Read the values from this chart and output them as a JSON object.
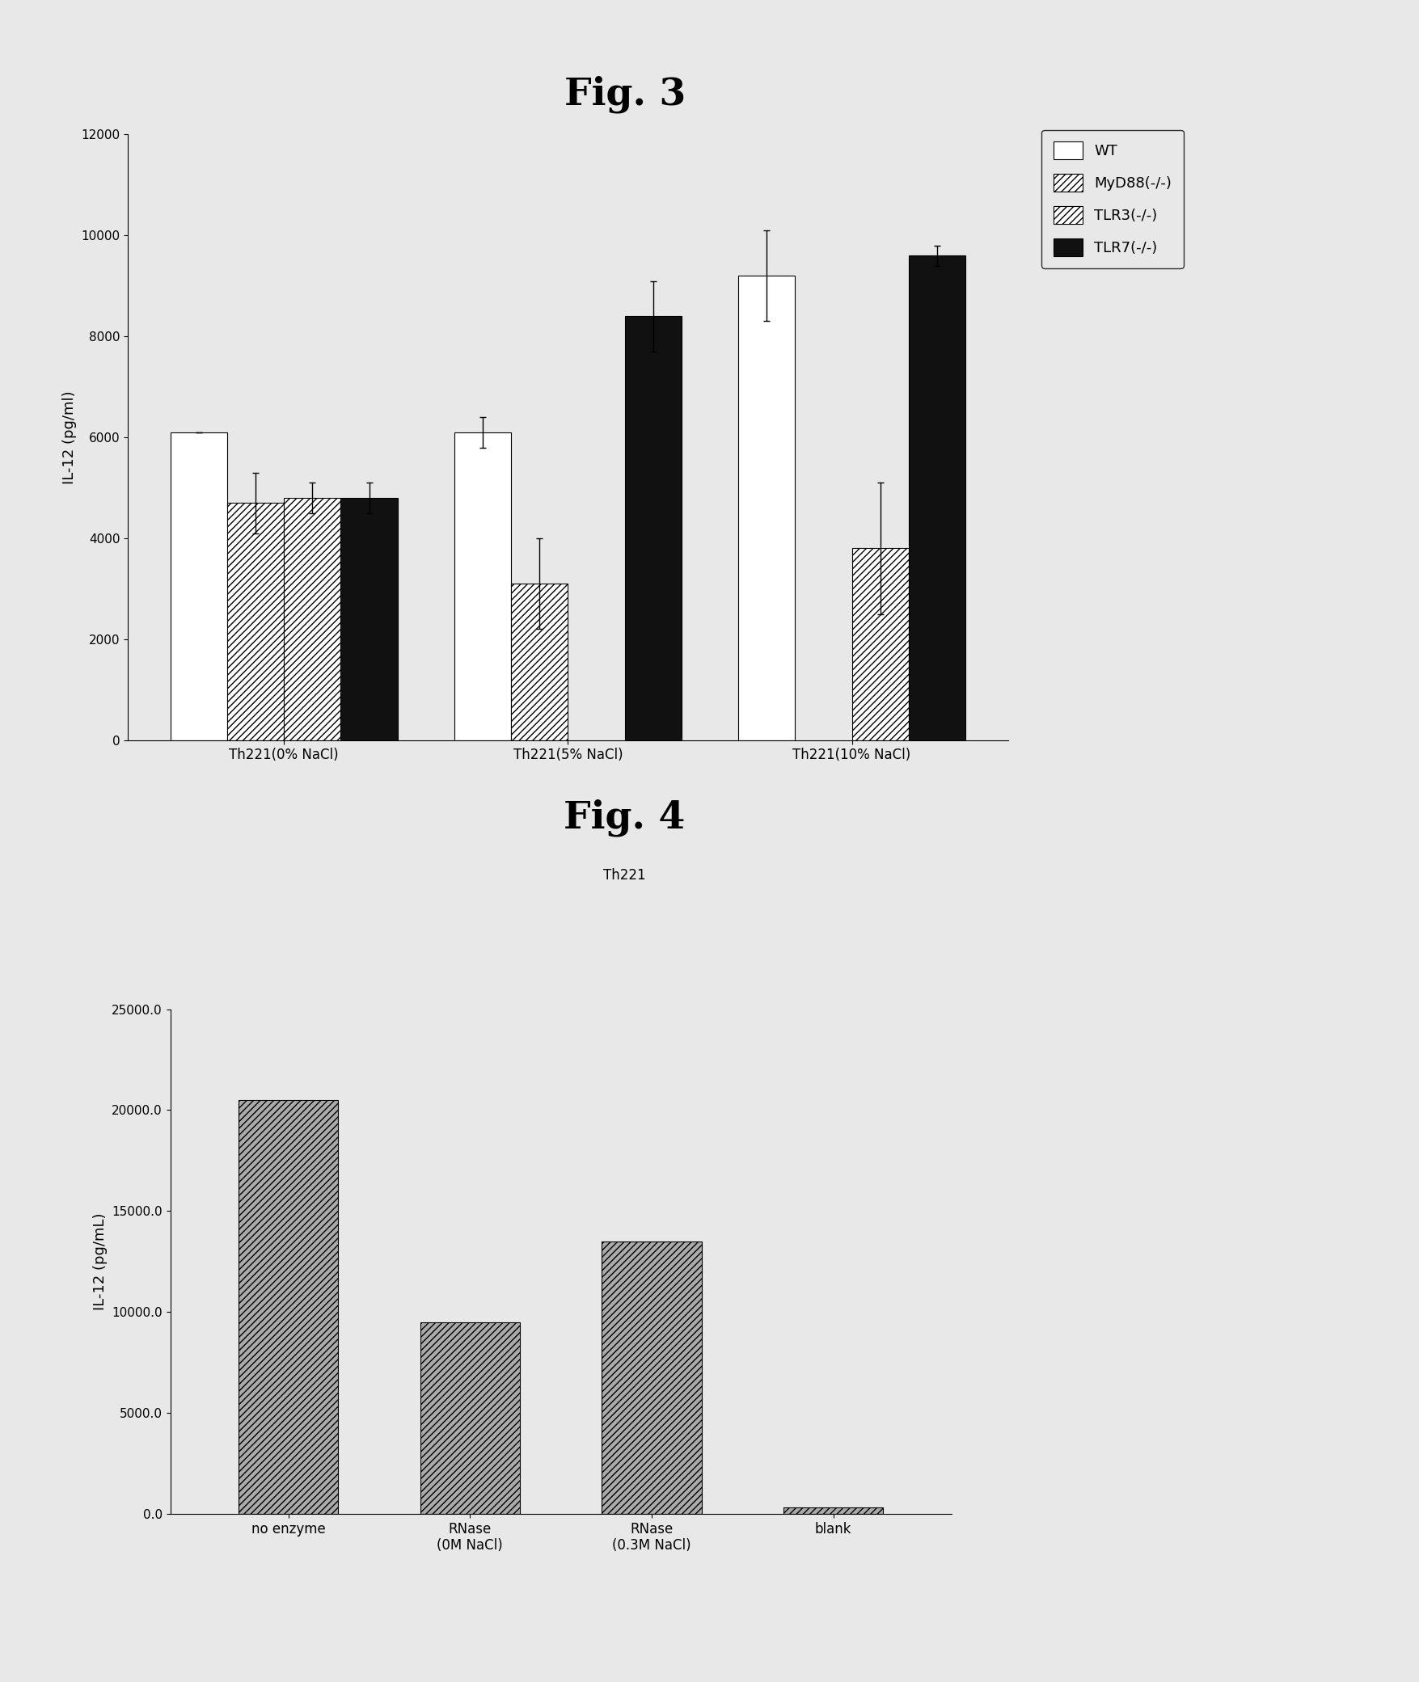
{
  "fig3_title": "Fig. 3",
  "fig3_ylabel": "IL-12 (pg/ml)",
  "fig3_ylim": [
    0,
    12000
  ],
  "fig3_yticks": [
    0,
    2000,
    4000,
    6000,
    8000,
    10000,
    12000
  ],
  "fig3_groups": [
    "Th221(0% NaCl)",
    "Th221(5% NaCl)",
    "Th221(10% NaCl)"
  ],
  "fig3_series": [
    "WT",
    "MyD88(-/-)",
    "TLR3(-/-)",
    "TLR7(-/-)"
  ],
  "fig3_values": [
    [
      6100,
      4700,
      4800,
      4800
    ],
    [
      6100,
      3100,
      -1,
      8400
    ],
    [
      9200,
      -1,
      3800,
      9600
    ]
  ],
  "fig3_errors": [
    [
      0,
      600,
      300,
      300
    ],
    [
      300,
      900,
      0,
      700
    ],
    [
      900,
      0,
      1300,
      200
    ]
  ],
  "fig3_colors": [
    "white",
    "white",
    "white",
    "#111111"
  ],
  "fig3_hatches": [
    "",
    "////",
    "////",
    ""
  ],
  "fig3_edgecolors": [
    "black",
    "black",
    "black",
    "black"
  ],
  "fig3_legend_entries": [
    "WT",
    "MyD88(-/-)",
    "TLR3(-/-)",
    "TLR7(-/-)"
  ],
  "fig3_legend_colors": [
    "white",
    "white",
    "white",
    "#111111"
  ],
  "fig3_legend_hatches": [
    "",
    "////",
    "////",
    ""
  ],
  "fig4_title": "Fig. 4",
  "fig4_subtitle": "Th221",
  "fig4_ylabel": "IL-12 (pg/mL)",
  "fig4_ylim": [
    0,
    25000
  ],
  "fig4_yticks": [
    0.0,
    5000.0,
    10000.0,
    15000.0,
    20000.0,
    25000.0
  ],
  "fig4_ytick_labels": [
    "0.0",
    "5000.0",
    "10000.0",
    "15000.0",
    "20000.0",
    "25000.0"
  ],
  "fig4_categories": [
    "no enzyme",
    "RNase\n(0M NaCl)",
    "RNase\n(0.3M NaCl)",
    "blank"
  ],
  "fig4_values": [
    20500,
    9500,
    13500,
    300
  ],
  "fig4_color": "#aaaaaa",
  "fig4_hatch": "////"
}
